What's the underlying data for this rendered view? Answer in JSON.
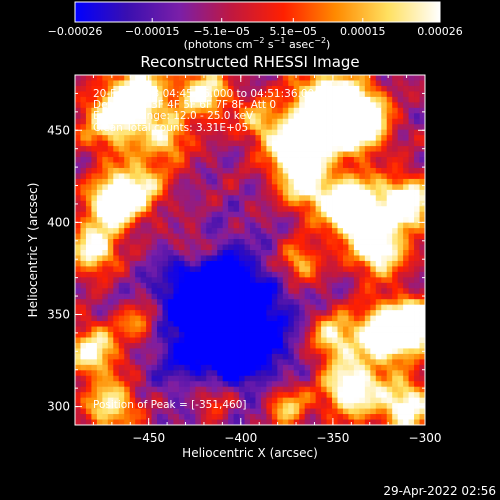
{
  "chart_data": {
    "type": "heatmap",
    "title": "Reconstructed RHESSI Image",
    "xlabel": "Heliocentric X (arcsec)",
    "ylabel": "Heliocentric Y (arcsec)",
    "xlim": [
      -490,
      -300
    ],
    "ylim": [
      290,
      480
    ],
    "x_ticks": [
      {
        "value": -450,
        "label": "−450"
      },
      {
        "value": -400,
        "label": "−400"
      },
      {
        "value": -350,
        "label": "−350"
      },
      {
        "value": -300,
        "label": "−300"
      }
    ],
    "y_ticks": [
      {
        "value": 300,
        "label": "300"
      },
      {
        "value": 350,
        "label": "350"
      },
      {
        "value": 400,
        "label": "400"
      },
      {
        "value": 450,
        "label": "450"
      }
    ],
    "colorbar": {
      "range": [
        -0.00026,
        0.00026
      ],
      "ticks": [
        {
          "value": -0.00026,
          "label": "−0.00026"
        },
        {
          "value": -0.00015,
          "label": "−0.00015"
        },
        {
          "value": -5.1e-05,
          "label": "−5.1e−05"
        },
        {
          "value": 5.1e-05,
          "label": "5.1e−05"
        },
        {
          "value": 0.00015,
          "label": "0.00015"
        },
        {
          "value": 0.00026,
          "label": "0.00026"
        }
      ],
      "unit_parts": {
        "open": "(photons cm",
        "exp1": "−2",
        "mid1": " s",
        "exp2": "−1",
        "mid2": " asec",
        "exp3": "−2",
        "close": ")"
      },
      "colormap_stops": [
        "#0000ff",
        "#3a0fb0",
        "#7a1fa8",
        "#c01840",
        "#ff2000",
        "#ff8a00",
        "#ffe060",
        "#ffffff"
      ]
    },
    "annotations": [
      "20-Feb-2003 04:45:36.000 to 04:51:36.000",
      "Detectors: 3F 4F 5F 6F 7F 8F, Att 0",
      "Energy Range: 12.0 - 25.0 keV",
      "Clean     Total counts: 3.31E+05"
    ],
    "peak": {
      "label": "Position of Peak = [-351,460]",
      "x": -351,
      "y": 460
    },
    "image_grid": {
      "cols": 64,
      "rows": 64
    },
    "bright_regions": [
      {
        "x": -352,
        "y": 460,
        "sigma": 14,
        "amp": 1.15
      },
      {
        "x": -335,
        "y": 455,
        "sigma": 10,
        "amp": 0.9
      },
      {
        "x": -372,
        "y": 438,
        "sigma": 10,
        "amp": 0.75
      },
      {
        "x": -455,
        "y": 470,
        "sigma": 11,
        "amp": 0.75
      },
      {
        "x": -420,
        "y": 470,
        "sigma": 10,
        "amp": 0.65
      },
      {
        "x": -470,
        "y": 455,
        "sigma": 12,
        "amp": 0.6
      },
      {
        "x": -440,
        "y": 445,
        "sigma": 9,
        "amp": 0.5
      },
      {
        "x": -470,
        "y": 410,
        "sigma": 10,
        "amp": 0.8
      },
      {
        "x": -480,
        "y": 385,
        "sigma": 9,
        "amp": 0.7
      },
      {
        "x": -455,
        "y": 420,
        "sigma": 10,
        "amp": 0.55
      },
      {
        "x": -340,
        "y": 408,
        "sigma": 12,
        "amp": 0.9
      },
      {
        "x": -310,
        "y": 410,
        "sigma": 10,
        "amp": 0.85
      },
      {
        "x": -325,
        "y": 385,
        "sigma": 10,
        "amp": 0.75
      },
      {
        "x": -365,
        "y": 420,
        "sigma": 9,
        "amp": 0.6
      },
      {
        "x": -368,
        "y": 378,
        "sigma": 8,
        "amp": 0.5
      },
      {
        "x": -480,
        "y": 330,
        "sigma": 10,
        "amp": 0.65
      },
      {
        "x": -455,
        "y": 345,
        "sigma": 8,
        "amp": 0.45
      },
      {
        "x": -470,
        "y": 300,
        "sigma": 10,
        "amp": 0.6
      },
      {
        "x": -320,
        "y": 340,
        "sigma": 11,
        "amp": 1.0
      },
      {
        "x": -305,
        "y": 345,
        "sigma": 8,
        "amp": 0.9
      },
      {
        "x": -350,
        "y": 338,
        "sigma": 9,
        "amp": 0.6
      },
      {
        "x": -340,
        "y": 310,
        "sigma": 11,
        "amp": 0.8
      },
      {
        "x": -310,
        "y": 300,
        "sigma": 10,
        "amp": 0.75
      },
      {
        "x": -375,
        "y": 300,
        "sigma": 8,
        "amp": 0.5
      },
      {
        "x": -415,
        "y": 305,
        "sigma": 8,
        "amp": 0.35
      },
      {
        "x": -390,
        "y": 455,
        "sigma": 8,
        "amp": 0.45
      },
      {
        "x": -425,
        "y": 385,
        "sigma": 7,
        "amp": 0.35
      }
    ],
    "dark_regions": [
      {
        "x": -410,
        "y": 345,
        "sigma": 24,
        "amp": 0.7
      },
      {
        "x": -400,
        "y": 335,
        "sigma": 10,
        "amp": 0.45
      },
      {
        "x": -420,
        "y": 370,
        "sigma": 12,
        "amp": 0.3
      }
    ]
  },
  "footer": {
    "timestamp": "29-Apr-2022 02:56"
  }
}
